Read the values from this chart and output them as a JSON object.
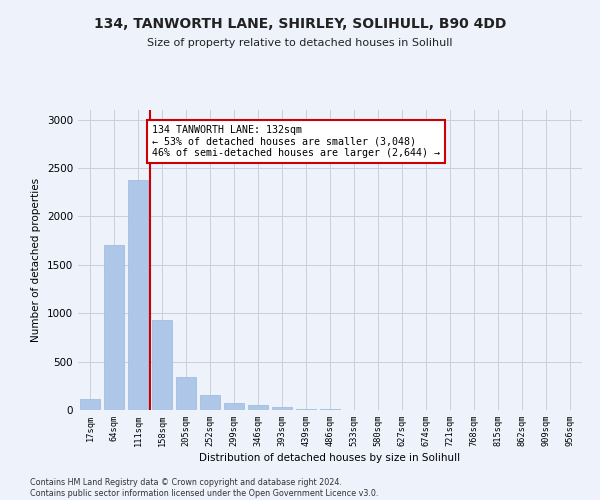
{
  "title": "134, TANWORTH LANE, SHIRLEY, SOLIHULL, B90 4DD",
  "subtitle": "Size of property relative to detached houses in Solihull",
  "xlabel": "Distribution of detached houses by size in Solihull",
  "ylabel": "Number of detached properties",
  "bin_labels": [
    "17sqm",
    "64sqm",
    "111sqm",
    "158sqm",
    "205sqm",
    "252sqm",
    "299sqm",
    "346sqm",
    "393sqm",
    "439sqm",
    "486sqm",
    "533sqm",
    "580sqm",
    "627sqm",
    "674sqm",
    "721sqm",
    "768sqm",
    "815sqm",
    "862sqm",
    "909sqm",
    "956sqm"
  ],
  "bar_values": [
    110,
    1700,
    2380,
    930,
    340,
    150,
    75,
    50,
    30,
    15,
    15,
    0,
    0,
    0,
    0,
    0,
    0,
    0,
    0,
    0,
    0
  ],
  "bar_color": "#aec6e8",
  "bar_edge_color": "#9ab8d8",
  "grid_color": "#c8d0e0",
  "background_color": "#eef2fb",
  "annotation_text": "134 TANWORTH LANE: 132sqm\n← 53% of detached houses are smaller (3,048)\n46% of semi-detached houses are larger (2,644) →",
  "annotation_box_color": "#ffffff",
  "annotation_border_color": "#cc0000",
  "vline_color": "#cc0000",
  "ylim": [
    0,
    3100
  ],
  "yticks": [
    0,
    500,
    1000,
    1500,
    2000,
    2500,
    3000
  ],
  "footnote": "Contains HM Land Registry data © Crown copyright and database right 2024.\nContains public sector information licensed under the Open Government Licence v3.0."
}
